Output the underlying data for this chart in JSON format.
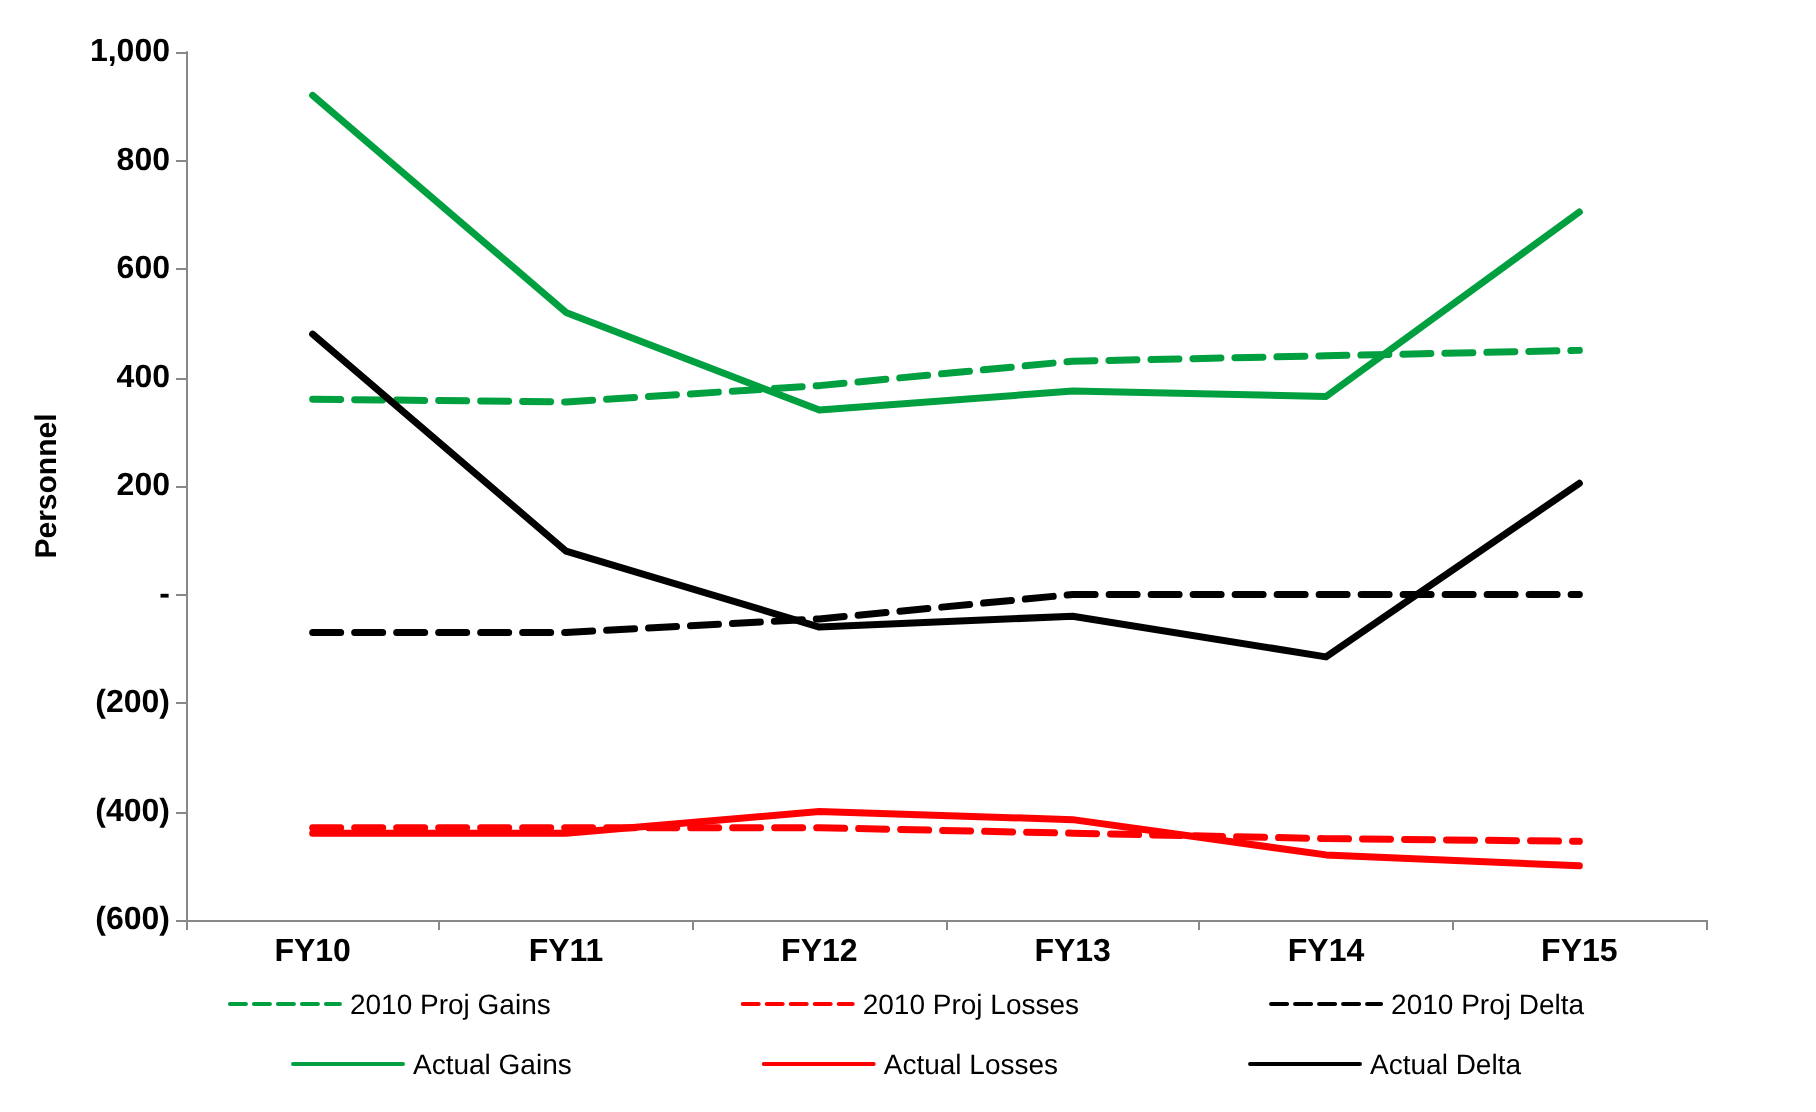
{
  "chart_data": {
    "type": "line",
    "ylabel": "Personnel",
    "categories": [
      "FY10",
      "FY11",
      "FY12",
      "FY13",
      "FY14",
      "FY15"
    ],
    "ylim": [
      -600,
      1000
    ],
    "yticks": [
      {
        "value": -600,
        "label": "(600)"
      },
      {
        "value": -400,
        "label": "(400)"
      },
      {
        "value": -200,
        "label": "(200)"
      },
      {
        "value": 0,
        "label": "-"
      },
      200,
      400,
      600,
      800,
      {
        "value": 1000,
        "label": "1,000"
      }
    ],
    "grid": false,
    "legend": "bottom",
    "marker": "none",
    "series": [
      {
        "name": "2010 Proj Gains",
        "color": "#00a040",
        "line_style": "dashed",
        "values": [
          360,
          355,
          385,
          430,
          440,
          450
        ]
      },
      {
        "name": "2010 Proj Losses",
        "color": "#ff0000",
        "line_style": "dashed",
        "values": [
          -430,
          -430,
          -430,
          -440,
          -450,
          -455
        ]
      },
      {
        "name": "2010 Proj Delta",
        "color": "#000000",
        "line_style": "dashed",
        "values": [
          -70,
          -70,
          -45,
          0,
          0,
          0
        ]
      },
      {
        "name": "Actual Gains",
        "color": "#00a040",
        "line_style": "solid",
        "values": [
          920,
          520,
          340,
          375,
          365,
          705
        ]
      },
      {
        "name": "Actual Losses",
        "color": "#ff0000",
        "line_style": "solid",
        "values": [
          -440,
          -440,
          -400,
          -415,
          -480,
          -500
        ]
      },
      {
        "name": "Actual Delta",
        "color": "#000000",
        "line_style": "solid",
        "values": [
          480,
          80,
          -60,
          -40,
          -115,
          205
        ]
      }
    ]
  }
}
